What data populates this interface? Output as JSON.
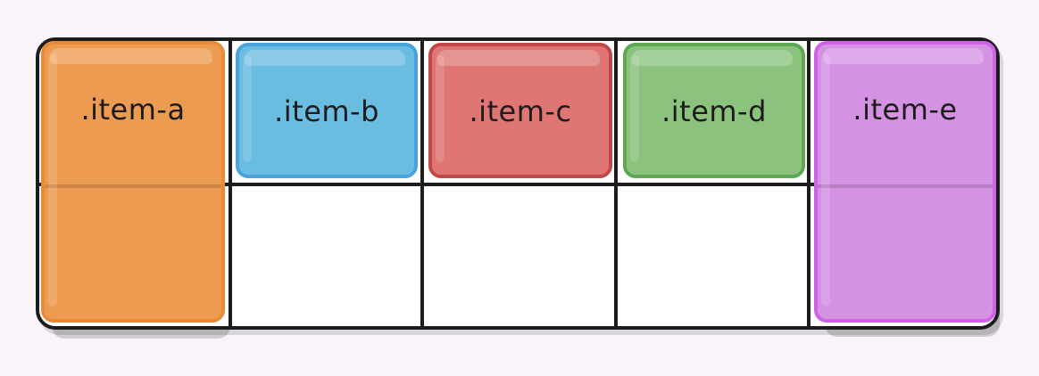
{
  "diagram": {
    "items": [
      {
        "label": ".item-a",
        "fill": "#ed9b50",
        "border": "#e88a37"
      },
      {
        "label": ".item-b",
        "fill": "#6bbce1",
        "border": "#4aa3da"
      },
      {
        "label": ".item-c",
        "fill": "#df7674",
        "border": "#c0484a"
      },
      {
        "label": ".item-d",
        "fill": "#8bc37e",
        "border": "#5ea851"
      },
      {
        "label": ".item-e",
        "fill": "#d592e3",
        "border": "#d161e8"
      }
    ]
  }
}
